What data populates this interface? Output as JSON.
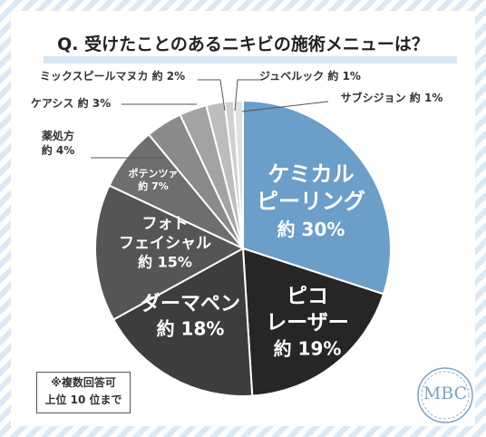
{
  "title": "Q. 受けたことのあるニキビの施術メニューは？",
  "note": [
    "※複数回答可",
    "上位 10 位まで"
  ],
  "logo": "MBC",
  "colors": {
    "highlight": "#6b9ec9",
    "dark": "#262626",
    "mid_dark": "#3d3d3d",
    "mid": "#555555",
    "gray": "#6e6e6e",
    "light_gray": "#8a8a8a",
    "lighter_gray": "#a3a3a3",
    "lightest_gray": "#bdbdbd",
    "pale": "#d0d0d0",
    "paler": "#e0e0e0",
    "accent_bg": "#d7e6f3"
  },
  "chart_data": {
    "type": "pie",
    "title": "Q. 受けたことのあるニキビの施術メニューは？",
    "slices": [
      {
        "label": "ケミカルピーリング",
        "value": 30,
        "display": "約 30%"
      },
      {
        "label": "ピコレーザー",
        "value": 19,
        "display": "約 19%"
      },
      {
        "label": "ダーマペン",
        "value": 18,
        "display": "約 18%"
      },
      {
        "label": "フォトフェイシャル",
        "value": 15,
        "display": "約 15%"
      },
      {
        "label": "ポテンツァ",
        "value": 7,
        "display": "約 7%"
      },
      {
        "label": "薬処方",
        "value": 4,
        "display": "約 4%"
      },
      {
        "label": "ケアシス",
        "value": 3,
        "display": "約 3%"
      },
      {
        "label": "ミックスピールマヌカ",
        "value": 2,
        "display": "約 2%"
      },
      {
        "label": "ジュベルック",
        "value": 1,
        "display": "約 1%"
      },
      {
        "label": "サブシジョン",
        "value": 1,
        "display": "約 1%"
      }
    ]
  }
}
